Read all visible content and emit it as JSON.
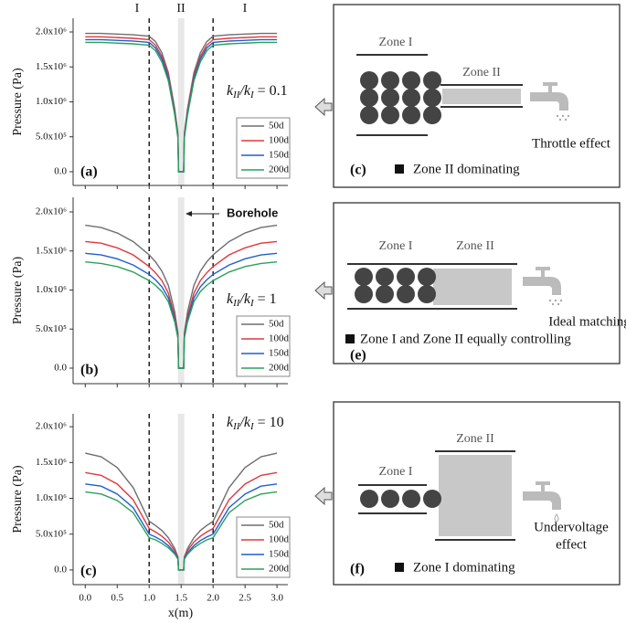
{
  "chart_data": [
    {
      "type": "line",
      "panel_label": "(a)",
      "y_label": "Pressure (Pa)",
      "zone_labels": [
        "I",
        "II",
        "I"
      ],
      "ratio_label": [
        "k",
        "II",
        "/k",
        "I",
        " = 0.1"
      ],
      "x": [
        0,
        0.25,
        0.5,
        0.75,
        1,
        1.1,
        1.2,
        1.3,
        1.4,
        1.45,
        1.46,
        1.54,
        1.55,
        1.6,
        1.7,
        1.8,
        1.9,
        2,
        2.25,
        2.5,
        2.75,
        3
      ],
      "series": [
        {
          "name": "50d",
          "color": "#6e6e6e",
          "values": [
            1980000,
            1980000,
            1970000,
            1960000,
            1940000,
            1860000,
            1700000,
            1420000,
            900000,
            550000,
            0,
            0,
            550000,
            900000,
            1420000,
            1700000,
            1860000,
            1940000,
            1960000,
            1970000,
            1980000,
            1980000
          ]
        },
        {
          "name": "100d",
          "color": "#e0383c",
          "values": [
            1930000,
            1930000,
            1920000,
            1910000,
            1890000,
            1810000,
            1650000,
            1380000,
            870000,
            520000,
            0,
            0,
            520000,
            870000,
            1380000,
            1650000,
            1810000,
            1890000,
            1910000,
            1920000,
            1930000,
            1930000
          ]
        },
        {
          "name": "150d",
          "color": "#1f5fd0",
          "values": [
            1890000,
            1890000,
            1880000,
            1870000,
            1850000,
            1770000,
            1610000,
            1340000,
            840000,
            500000,
            0,
            0,
            500000,
            840000,
            1340000,
            1610000,
            1770000,
            1850000,
            1870000,
            1880000,
            1890000,
            1890000
          ]
        },
        {
          "name": "200d",
          "color": "#2ca05a",
          "values": [
            1850000,
            1850000,
            1840000,
            1830000,
            1810000,
            1730000,
            1570000,
            1300000,
            810000,
            480000,
            0,
            0,
            480000,
            810000,
            1300000,
            1570000,
            1730000,
            1810000,
            1830000,
            1840000,
            1850000,
            1850000
          ]
        }
      ],
      "xlim": [
        -0.19,
        3.17
      ],
      "ylim": [
        -196000,
        2196000
      ],
      "yticks": [
        {
          "value": 0,
          "label": "0.0"
        },
        {
          "value": 500000,
          "label": "5.0x10⁵"
        },
        {
          "value": 1000000,
          "label": "1.0x10⁶"
        },
        {
          "value": 1500000,
          "label": "1.5x10⁶"
        },
        {
          "value": 2000000,
          "label": "2.0x10⁶"
        }
      ],
      "vlines": [
        1,
        2
      ],
      "band": [
        1.45,
        1.55
      ],
      "legend": "lower right"
    },
    {
      "type": "line",
      "panel_label": "(b)",
      "y_label": "Pressure (Pa)",
      "annotation": "Borehole",
      "ratio_label": [
        "k",
        "II",
        "/k",
        "I",
        " = 1"
      ],
      "x": [
        0,
        0.25,
        0.5,
        0.75,
        1,
        1.1,
        1.2,
        1.3,
        1.4,
        1.45,
        1.46,
        1.54,
        1.55,
        1.6,
        1.7,
        1.8,
        1.9,
        2,
        2.25,
        2.5,
        2.75,
        3
      ],
      "series": [
        {
          "name": "50d",
          "color": "#6e6e6e",
          "values": [
            1830000,
            1800000,
            1730000,
            1620000,
            1450000,
            1360000,
            1240000,
            1060000,
            720000,
            450000,
            0,
            0,
            450000,
            720000,
            1060000,
            1240000,
            1360000,
            1450000,
            1620000,
            1730000,
            1800000,
            1830000
          ]
        },
        {
          "name": "100d",
          "color": "#e0383c",
          "values": [
            1620000,
            1600000,
            1540000,
            1450000,
            1300000,
            1220000,
            1120000,
            960000,
            660000,
            420000,
            0,
            0,
            420000,
            660000,
            960000,
            1120000,
            1220000,
            1300000,
            1450000,
            1540000,
            1600000,
            1620000
          ]
        },
        {
          "name": "150d",
          "color": "#1f5fd0",
          "values": [
            1470000,
            1450000,
            1400000,
            1320000,
            1200000,
            1130000,
            1040000,
            900000,
            620000,
            400000,
            0,
            0,
            400000,
            620000,
            900000,
            1040000,
            1130000,
            1200000,
            1320000,
            1400000,
            1450000,
            1470000
          ]
        },
        {
          "name": "200d",
          "color": "#2ca05a",
          "values": [
            1360000,
            1340000,
            1300000,
            1230000,
            1120000,
            1060000,
            980000,
            850000,
            590000,
            380000,
            0,
            0,
            380000,
            590000,
            850000,
            980000,
            1060000,
            1120000,
            1230000,
            1300000,
            1340000,
            1360000
          ]
        }
      ],
      "xlim": [
        -0.19,
        3.17
      ],
      "ylim": [
        -199000,
        2187000
      ],
      "yticks": [
        {
          "value": 0,
          "label": "0.0"
        },
        {
          "value": 500000,
          "label": "5.0x10⁵"
        },
        {
          "value": 1000000,
          "label": "1.0x10⁶"
        },
        {
          "value": 1500000,
          "label": "1.5x10⁶"
        },
        {
          "value": 2000000,
          "label": "2.0x10⁶"
        }
      ],
      "vlines": [
        1,
        2
      ],
      "band": [
        1.45,
        1.55
      ],
      "legend": "lower right"
    },
    {
      "type": "line",
      "panel_label": "(c)",
      "y_label": "Pressure (Pa)",
      "x_label": "x(m)",
      "ratio_label": [
        "k",
        "II",
        "/k",
        "I",
        " = 10"
      ],
      "x": [
        0,
        0.25,
        0.5,
        0.75,
        1,
        1.1,
        1.2,
        1.3,
        1.4,
        1.45,
        1.46,
        1.54,
        1.55,
        1.6,
        1.7,
        1.8,
        1.9,
        2,
        2.25,
        2.5,
        2.75,
        3
      ],
      "series": [
        {
          "name": "50d",
          "color": "#6e6e6e",
          "values": [
            1630000,
            1580000,
            1430000,
            1150000,
            680000,
            620000,
            550000,
            450000,
            300000,
            180000,
            0,
            0,
            180000,
            300000,
            450000,
            550000,
            620000,
            680000,
            1150000,
            1430000,
            1580000,
            1630000
          ]
        },
        {
          "name": "100d",
          "color": "#e0383c",
          "values": [
            1360000,
            1320000,
            1200000,
            980000,
            580000,
            530000,
            470000,
            390000,
            270000,
            170000,
            0,
            0,
            170000,
            270000,
            390000,
            470000,
            530000,
            580000,
            980000,
            1200000,
            1320000,
            1360000
          ]
        },
        {
          "name": "150d",
          "color": "#1f5fd0",
          "values": [
            1200000,
            1170000,
            1060000,
            870000,
            500000,
            460000,
            410000,
            340000,
            240000,
            160000,
            0,
            0,
            160000,
            240000,
            340000,
            410000,
            460000,
            500000,
            870000,
            1060000,
            1170000,
            1200000
          ]
        },
        {
          "name": "200d",
          "color": "#2ca05a",
          "values": [
            1090000,
            1060000,
            970000,
            800000,
            450000,
            420000,
            370000,
            310000,
            220000,
            150000,
            0,
            0,
            150000,
            220000,
            310000,
            370000,
            420000,
            450000,
            800000,
            970000,
            1060000,
            1090000
          ]
        }
      ],
      "xlim": [
        -0.19,
        3.17
      ],
      "ylim": [
        -205000,
        2180000
      ],
      "yticks": [
        {
          "value": 0,
          "label": "0.0"
        },
        {
          "value": 500000,
          "label": "5.0x10⁵"
        },
        {
          "value": 1000000,
          "label": "1.0x10⁶"
        },
        {
          "value": 1500000,
          "label": "1.5x10⁶"
        },
        {
          "value": 2000000,
          "label": "2.0x10⁶"
        }
      ],
      "xticks": [
        {
          "value": 0,
          "label": "0.0"
        },
        0.5,
        {
          "value": 1,
          "label": "1.0"
        },
        1.5,
        {
          "value": 2,
          "label": "2.0"
        },
        2.5,
        {
          "value": 3,
          "label": "3.0"
        }
      ],
      "vlines": [
        1,
        2
      ],
      "band": [
        1.45,
        1.55
      ],
      "legend": "lower right"
    }
  ],
  "diagrams": [
    {
      "label": "(c)",
      "zones": [
        "Zone I",
        "Zone II"
      ],
      "effect": [
        "Throttle effect"
      ],
      "note": "Zone II dominating"
    },
    {
      "label": "(e)",
      "zones": [
        "Zone I",
        "Zone II"
      ],
      "effect": [
        "Ideal matching"
      ],
      "note": "Zone I and Zone II equally controlling"
    },
    {
      "label": "(f)",
      "zones": [
        "Zone I",
        "Zone II"
      ],
      "effect": [
        "Undervoltage",
        "effect"
      ],
      "note": "Zone I dominating"
    }
  ]
}
